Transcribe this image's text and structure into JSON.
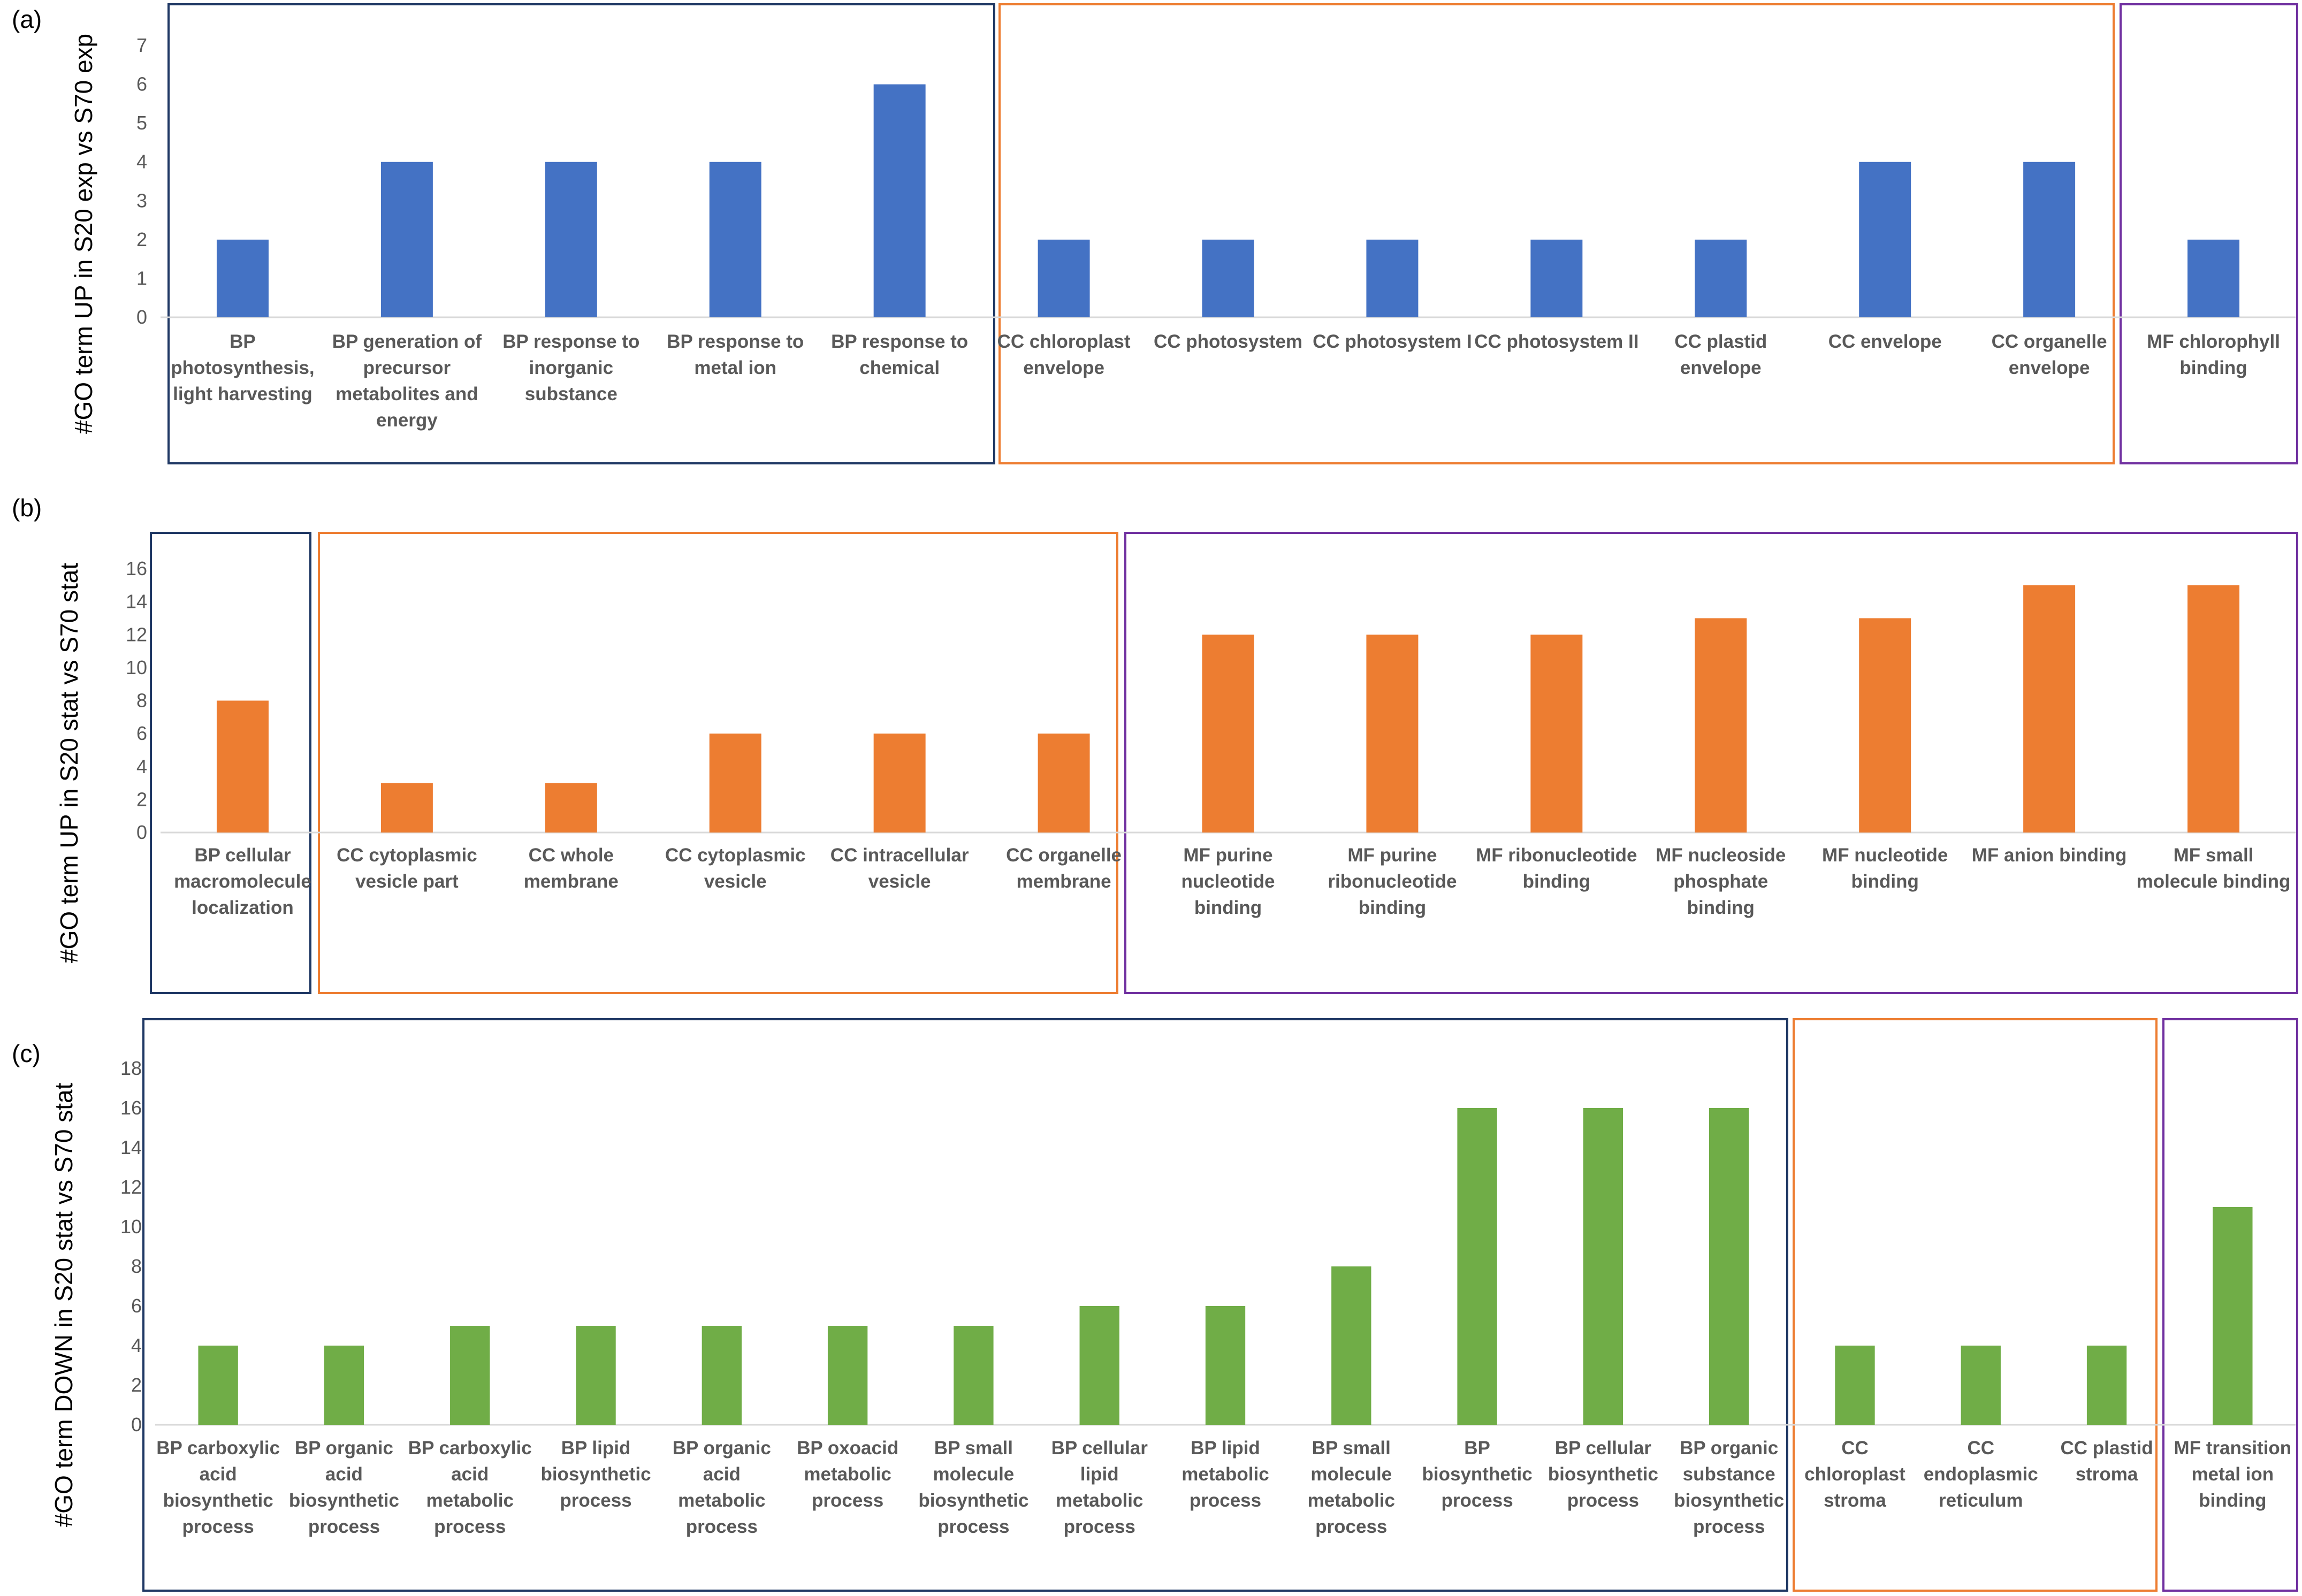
{
  "chart_data": [
    {
      "type": "bar",
      "panel_label": "(a)",
      "ylabel": "#GO term UP in S20 exp vs S70 exp",
      "ylim": [
        0,
        7
      ],
      "ytick_step": 1,
      "color": "#4472C4",
      "categories": [
        "BP photosynthesis, light harvesting",
        "BP generation of precursor metabolites and energy",
        "BP response to inorganic substance",
        "BP response to metal ion",
        "BP response to chemical",
        "CC chloroplast envelope",
        "CC photosystem",
        "CC photosystem I",
        "CC photosystem II",
        "CC plastid envelope",
        "CC envelope",
        "CC organelle envelope",
        "MF chlorophyll binding"
      ],
      "label_lines": [
        [
          "BP",
          "photosynthesis,",
          "light harvesting"
        ],
        [
          "BP generation of",
          "precursor",
          "metabolites and",
          "energy"
        ],
        [
          "BP response to",
          "inorganic",
          "substance"
        ],
        [
          "BP response to",
          "metal ion"
        ],
        [
          "BP response to",
          "chemical"
        ],
        [
          "CC chloroplast",
          "envelope"
        ],
        [
          "CC photosystem"
        ],
        [
          "CC photosystem I"
        ],
        [
          "CC photosystem II"
        ],
        [
          "CC plastid",
          "envelope"
        ],
        [
          "CC envelope"
        ],
        [
          "CC organelle",
          "envelope"
        ],
        [
          "MF chlorophyll",
          "binding"
        ]
      ],
      "values": [
        2,
        4,
        4,
        4,
        6,
        2,
        2,
        2,
        2,
        2,
        4,
        4,
        2
      ],
      "groups": [
        {
          "name": "BP",
          "count": 5,
          "color": "#1F3864"
        },
        {
          "name": "CC",
          "count": 7,
          "color": "#ED7D31"
        },
        {
          "name": "MF",
          "count": 1,
          "color": "#7030A0"
        }
      ]
    },
    {
      "type": "bar",
      "panel_label": "(b)",
      "ylabel": "#GO term UP in S20 stat vs S70 stat",
      "ylim": [
        0,
        16
      ],
      "ytick_step": 2,
      "color": "#ED7D31",
      "categories": [
        "BP cellular macromolecule localization",
        "CC cytoplasmic vesicle part",
        "CC whole membrane",
        "CC cytoplasmic vesicle",
        "CC intracellular vesicle",
        "CC organelle membrane",
        "MF purine nucleotide binding",
        "MF purine ribonucleotide binding",
        "MF ribonucleotide binding",
        "MF nucleoside phosphate binding",
        "MF nucleotide binding",
        "MF anion binding",
        "MF small molecule binding"
      ],
      "label_lines": [
        [
          "BP cellular",
          "macromolecule",
          "localization"
        ],
        [
          "CC cytoplasmic",
          "vesicle part"
        ],
        [
          "CC whole",
          "membrane"
        ],
        [
          "CC cytoplasmic",
          "vesicle"
        ],
        [
          "CC intracellular",
          "vesicle"
        ],
        [
          "CC organelle",
          "membrane"
        ],
        [
          "MF purine",
          "nucleotide",
          "binding"
        ],
        [
          "MF purine",
          "ribonucleotide",
          "binding"
        ],
        [
          "MF ribonucleotide",
          "binding"
        ],
        [
          "MF nucleoside",
          "phosphate",
          "binding"
        ],
        [
          "MF nucleotide",
          "binding"
        ],
        [
          "MF anion binding"
        ],
        [
          "MF small",
          "molecule binding"
        ]
      ],
      "values": [
        8,
        3,
        3,
        6,
        6,
        6,
        12,
        12,
        12,
        13,
        13,
        15,
        15
      ],
      "groups": [
        {
          "name": "BP",
          "count": 1,
          "color": "#1F3864"
        },
        {
          "name": "CC",
          "count": 5,
          "color": "#ED7D31"
        },
        {
          "name": "MF",
          "count": 7,
          "color": "#7030A0"
        }
      ]
    },
    {
      "type": "bar",
      "panel_label": "(c)",
      "ylabel": "#GO term DOWN in S20 stat vs S70 stat",
      "ylim": [
        0,
        18
      ],
      "ytick_step": 2,
      "color": "#70AD47",
      "categories": [
        "BP carboxylic acid biosynthetic process",
        "BP organic acid biosynthetic process",
        "BP carboxylic acid metabolic process",
        "BP lipid biosynthetic process",
        "BP organic acid metabolic process",
        "BP oxoacid metabolic process",
        "BP small molecule biosynthetic process",
        "BP cellular lipid metabolic process",
        "BP lipid metabolic process",
        "BP small molecule metabolic process",
        "BP biosynthetic process",
        "BP cellular biosynthetic process",
        "BP organic substance biosynthetic process",
        "CC chloroplast stroma",
        "CC endoplasmic reticulum",
        "CC plastid stroma",
        "MF transition metal ion binding"
      ],
      "label_lines": [
        [
          "BP carboxylic",
          "acid",
          "biosynthetic",
          "process"
        ],
        [
          "BP organic",
          "acid",
          "biosynthetic",
          "process"
        ],
        [
          "BP carboxylic",
          "acid",
          "metabolic",
          "process"
        ],
        [
          "BP lipid",
          "biosynthetic",
          "process"
        ],
        [
          "BP organic",
          "acid",
          "metabolic",
          "process"
        ],
        [
          "BP oxoacid",
          "metabolic",
          "process"
        ],
        [
          "BP small",
          "molecule",
          "biosynthetic",
          "process"
        ],
        [
          "BP cellular",
          "lipid",
          "metabolic",
          "process"
        ],
        [
          "BP lipid",
          "metabolic",
          "process"
        ],
        [
          "BP small",
          "molecule",
          "metabolic",
          "process"
        ],
        [
          "BP",
          "biosynthetic",
          "process"
        ],
        [
          "BP cellular",
          "biosynthetic",
          "process"
        ],
        [
          "BP organic",
          "substance",
          "biosynthetic",
          "process"
        ],
        [
          "CC",
          "chloroplast",
          "stroma"
        ],
        [
          "CC",
          "endoplasmic",
          "reticulum"
        ],
        [
          "CC plastid",
          "stroma"
        ],
        [
          "MF transition",
          "metal ion",
          "binding"
        ]
      ],
      "values": [
        4,
        4,
        5,
        5,
        5,
        5,
        5,
        6,
        6,
        8,
        16,
        16,
        16,
        4,
        4,
        4,
        11
      ],
      "groups": [
        {
          "name": "BP",
          "count": 13,
          "color": "#1F3864"
        },
        {
          "name": "CC",
          "count": 3,
          "color": "#ED7D31"
        },
        {
          "name": "MF",
          "count": 1,
          "color": "#7030A0"
        }
      ]
    }
  ]
}
